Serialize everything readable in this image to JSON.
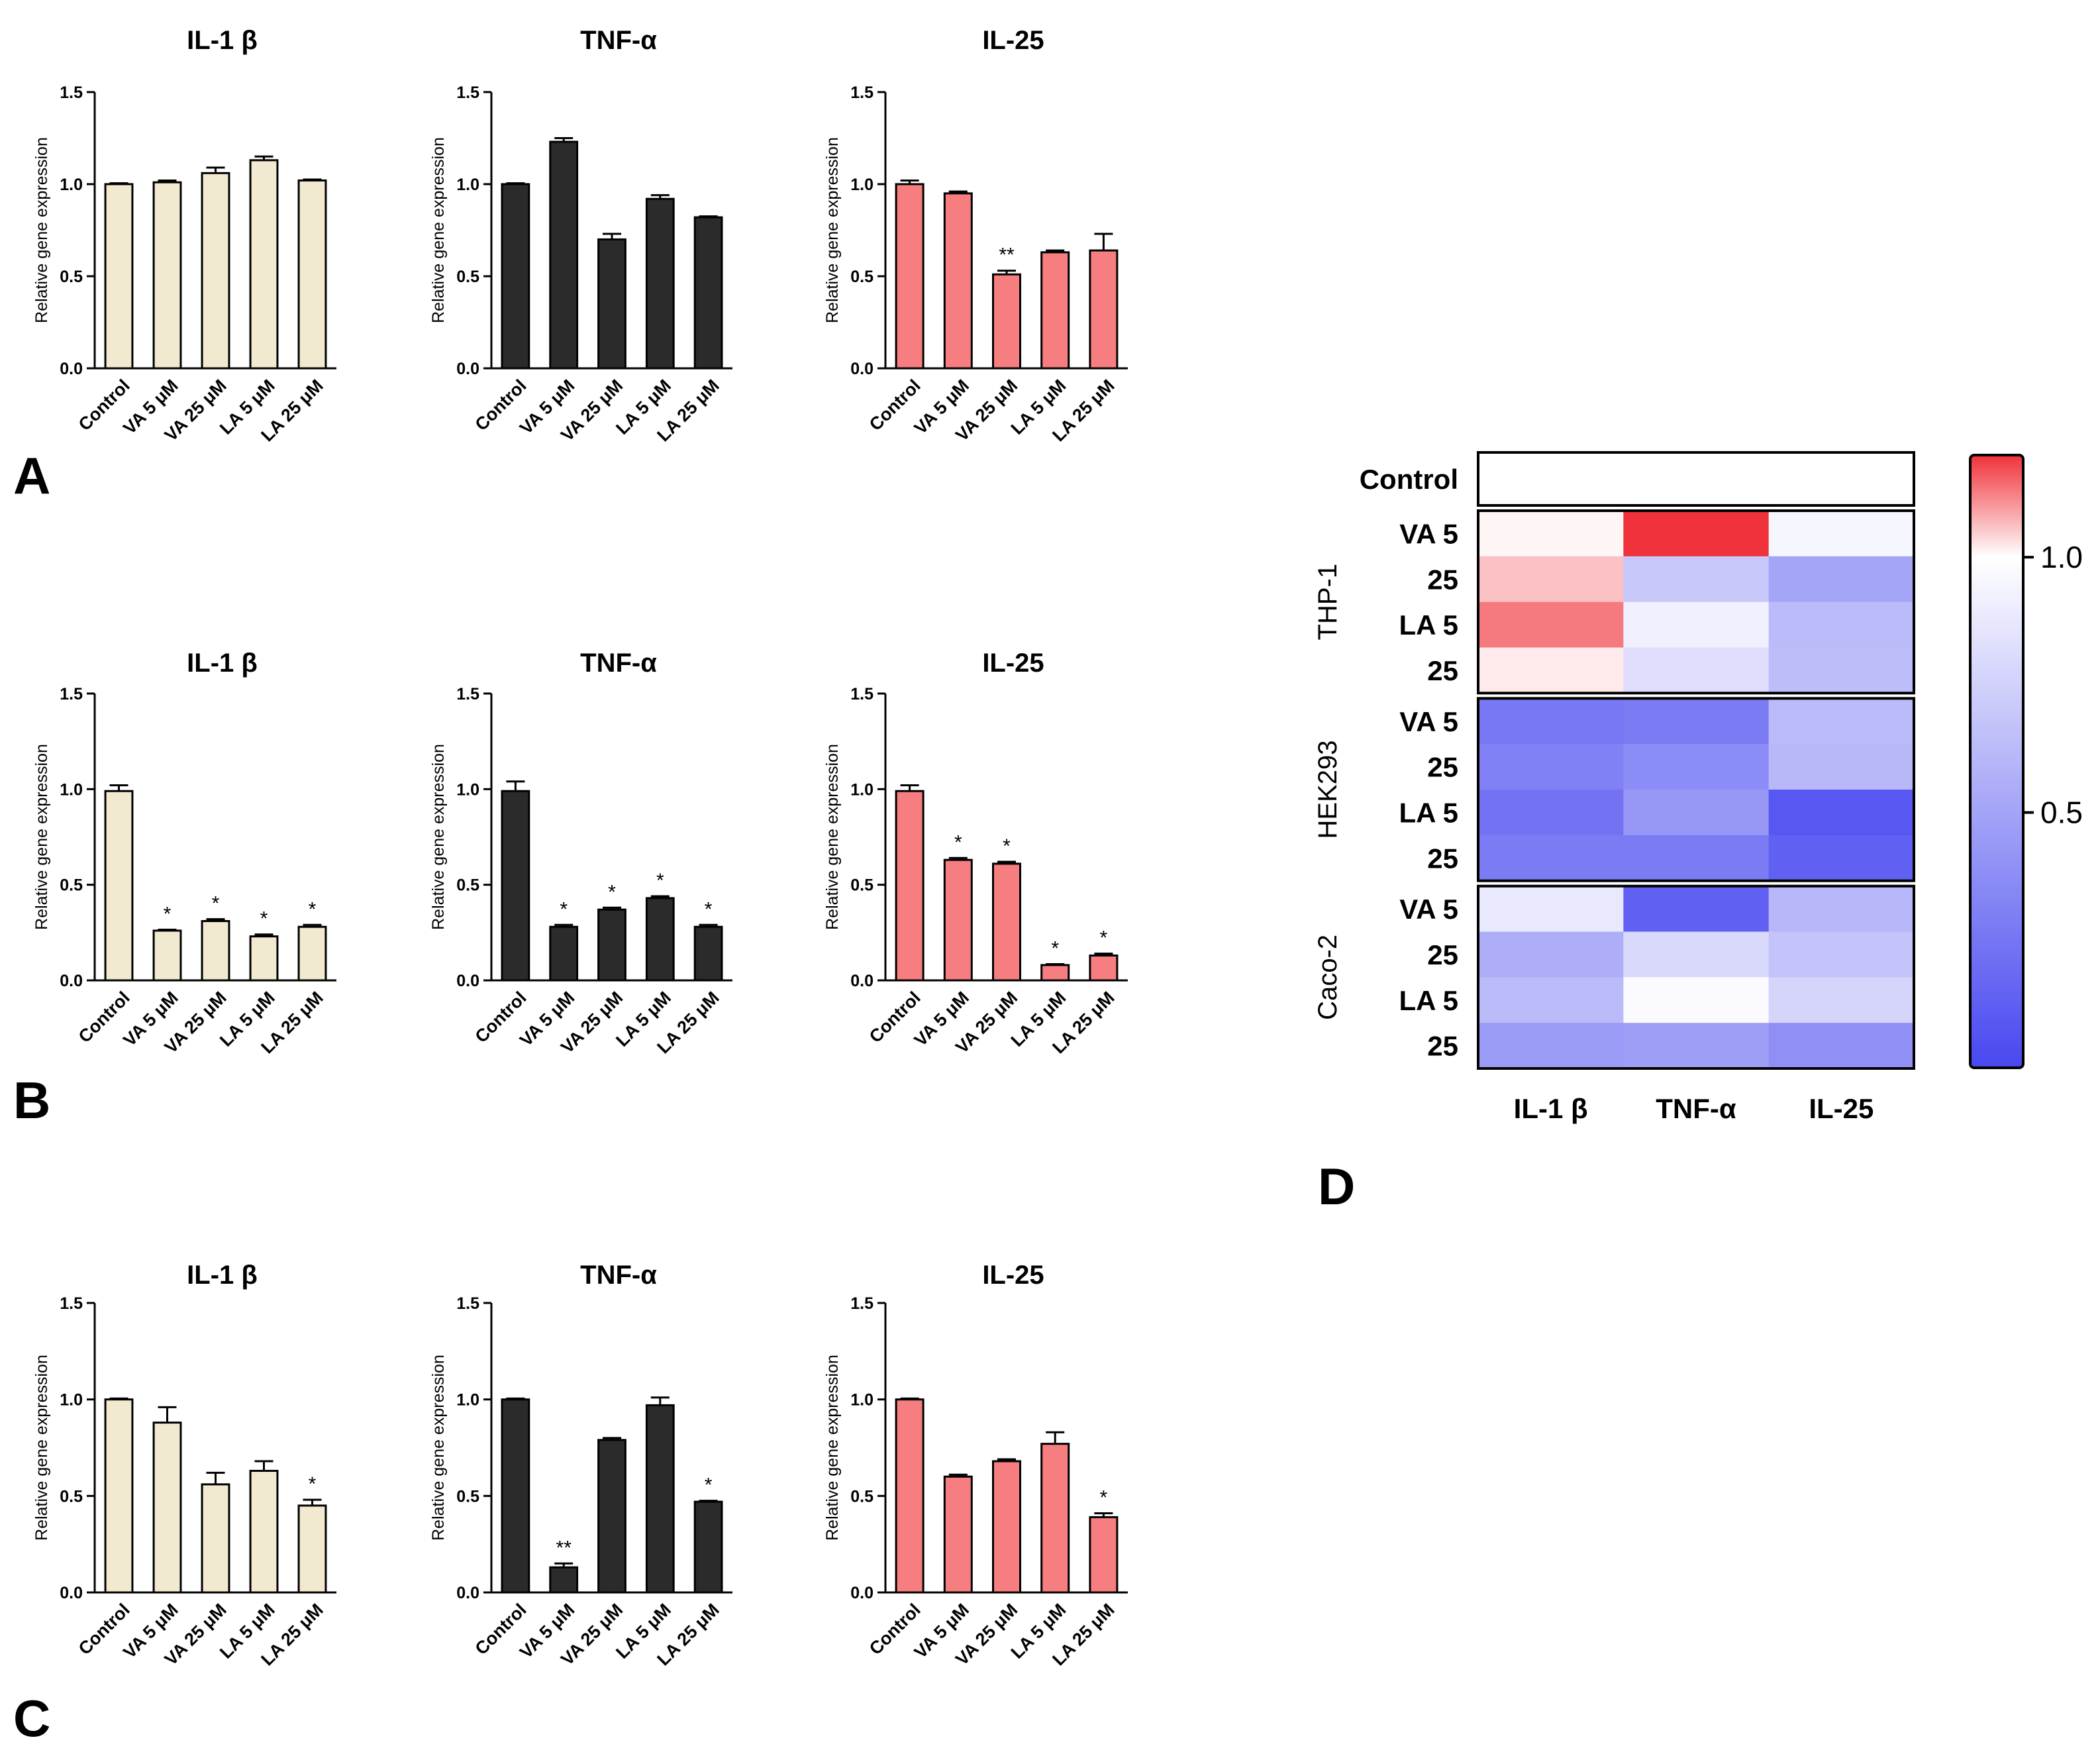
{
  "panel_labels": [
    "A",
    "B",
    "C",
    "D"
  ],
  "colors": {
    "il1b_fill": "#f2ead0",
    "tnf_fill": "#2b2b2b",
    "il25_fill": "#f77e80",
    "axis": "#000000",
    "heat_low": "#4848f0",
    "heat_mid": "#ffffff",
    "heat_high": "#f0323a"
  },
  "chart_data": [
    {
      "id": "A-IL1b",
      "panel": "A",
      "type": "bar",
      "title": "IL-1 β",
      "ylabel": "Relative gene expression",
      "ylim": [
        0,
        1.5
      ],
      "yticks": [
        "0.0",
        "0.5",
        "1.0",
        "1.5"
      ],
      "categories": [
        "Control",
        "VA 5 μM",
        "VA 25 μM",
        "LA 5 μM",
        "LA 25 μM"
      ],
      "values": [
        1.0,
        1.01,
        1.06,
        1.13,
        1.02
      ],
      "errors": [
        0.005,
        0.01,
        0.03,
        0.02,
        0.005
      ],
      "sig": [
        "",
        "",
        "",
        "",
        ""
      ],
      "color": "il1b_fill"
    },
    {
      "id": "A-TNFa",
      "panel": "A",
      "type": "bar",
      "title": "TNF-α",
      "ylabel": "Relative gene expression",
      "ylim": [
        0,
        1.5
      ],
      "yticks": [
        "0.0",
        "0.5",
        "1.0",
        "1.5"
      ],
      "categories": [
        "Control",
        "VA 5 μM",
        "VA 25 μM",
        "LA 5 μM",
        "LA 25 μM"
      ],
      "values": [
        1.0,
        1.23,
        0.7,
        0.92,
        0.82
      ],
      "errors": [
        0.005,
        0.02,
        0.03,
        0.02,
        0.005
      ],
      "sig": [
        "",
        "",
        "",
        "",
        ""
      ],
      "color": "tnf_fill"
    },
    {
      "id": "A-IL25",
      "panel": "A",
      "type": "bar",
      "title": "IL-25",
      "ylabel": "Relative gene expression",
      "ylim": [
        0,
        1.5
      ],
      "yticks": [
        "0.0",
        "0.5",
        "1.0",
        "1.5"
      ],
      "categories": [
        "Control",
        "VA 5 μM",
        "VA 25 μM",
        "LA 5 μM",
        "LA 25 μM"
      ],
      "values": [
        1.0,
        0.95,
        0.51,
        0.63,
        0.64
      ],
      "errors": [
        0.02,
        0.01,
        0.02,
        0.01,
        0.09
      ],
      "sig": [
        "",
        "",
        "**",
        "",
        ""
      ],
      "color": "il25_fill"
    },
    {
      "id": "B-IL1b",
      "panel": "B",
      "type": "bar",
      "title": "IL-1 β",
      "ylabel": "Relative gene expression",
      "ylim": [
        0,
        1.5
      ],
      "yticks": [
        "0.0",
        "0.5",
        "1.0",
        "1.5"
      ],
      "categories": [
        "Control",
        "VA 5 μM",
        "VA 25 μM",
        "LA 5 μM",
        "LA 25 μM"
      ],
      "values": [
        0.99,
        0.26,
        0.31,
        0.23,
        0.28
      ],
      "errors": [
        0.03,
        0.005,
        0.01,
        0.01,
        0.01
      ],
      "sig": [
        "",
        "*",
        "*",
        "*",
        "*"
      ],
      "color": "il1b_fill"
    },
    {
      "id": "B-TNFa",
      "panel": "B",
      "type": "bar",
      "title": "TNF-α",
      "ylabel": "Relative gene expression",
      "ylim": [
        0,
        1.5
      ],
      "yticks": [
        "0.0",
        "0.5",
        "1.0",
        "1.5"
      ],
      "categories": [
        "Control",
        "VA 5 μM",
        "VA 25 μM",
        "LA 5 μM",
        "LA 25 μM"
      ],
      "values": [
        0.99,
        0.28,
        0.37,
        0.43,
        0.28
      ],
      "errors": [
        0.05,
        0.01,
        0.01,
        0.01,
        0.01
      ],
      "sig": [
        "",
        "*",
        "*",
        "*",
        "*"
      ],
      "color": "tnf_fill"
    },
    {
      "id": "B-IL25",
      "panel": "B",
      "type": "bar",
      "title": "IL-25",
      "ylabel": "Relative gene expression",
      "ylim": [
        0,
        1.5
      ],
      "yticks": [
        "0.0",
        "0.5",
        "1.0",
        "1.5"
      ],
      "categories": [
        "Control",
        "VA 5 μM",
        "VA 25 μM",
        "LA 5 μM",
        "LA 25 μM"
      ],
      "values": [
        0.99,
        0.63,
        0.61,
        0.08,
        0.13
      ],
      "errors": [
        0.03,
        0.01,
        0.01,
        0.005,
        0.01
      ],
      "sig": [
        "",
        "*",
        "*",
        "*",
        "*"
      ],
      "color": "il25_fill"
    },
    {
      "id": "C-IL1b",
      "panel": "C",
      "type": "bar",
      "title": "IL-1 β",
      "ylabel": "Relative gene expression",
      "ylim": [
        0,
        1.5
      ],
      "yticks": [
        "0.0",
        "0.5",
        "1.0",
        "1.5"
      ],
      "categories": [
        "Control",
        "VA 5 μM",
        "VA 25 μM",
        "LA 5 μM",
        "LA 25 μM"
      ],
      "values": [
        1.0,
        0.88,
        0.56,
        0.63,
        0.45
      ],
      "errors": [
        0.005,
        0.08,
        0.06,
        0.05,
        0.03
      ],
      "sig": [
        "",
        "",
        "",
        "",
        "*"
      ],
      "color": "il1b_fill"
    },
    {
      "id": "C-TNFa",
      "panel": "C",
      "type": "bar",
      "title": "TNF-α",
      "ylabel": "Relative gene expression",
      "ylim": [
        0,
        1.5
      ],
      "yticks": [
        "0.0",
        "0.5",
        "1.0",
        "1.5"
      ],
      "categories": [
        "Control",
        "VA 5 μM",
        "VA 25 μM",
        "LA 5 μM",
        "LA 25 μM"
      ],
      "values": [
        1.0,
        0.13,
        0.79,
        0.97,
        0.47
      ],
      "errors": [
        0.005,
        0.02,
        0.01,
        0.04,
        0.005
      ],
      "sig": [
        "",
        "**",
        "",
        "",
        "*"
      ],
      "color": "tnf_fill"
    },
    {
      "id": "C-IL25",
      "panel": "C",
      "type": "bar",
      "title": "IL-25",
      "ylabel": "Relative gene expression",
      "ylim": [
        0,
        1.5
      ],
      "yticks": [
        "0.0",
        "0.5",
        "1.0",
        "1.5"
      ],
      "categories": [
        "Control",
        "VA 5 μM",
        "VA 25 μM",
        "LA 5 μM",
        "LA 25 μM"
      ],
      "values": [
        1.0,
        0.6,
        0.68,
        0.77,
        0.39
      ],
      "errors": [
        0.005,
        0.01,
        0.01,
        0.06,
        0.02
      ],
      "sig": [
        "",
        "",
        "",
        "",
        "*"
      ],
      "color": "il25_fill"
    },
    {
      "id": "D-heatmap",
      "panel": "D",
      "type": "heatmap",
      "columns": [
        "IL-1 β",
        "TNF-α",
        "IL-25"
      ],
      "control_label": "Control",
      "groups": [
        {
          "name": "THP-1",
          "rows": [
            {
              "label": "VA 5",
              "values": [
                1.01,
                1.23,
                0.95
              ]
            },
            {
              "label": "25",
              "values": [
                1.06,
                0.7,
                0.51
              ]
            },
            {
              "label": "LA 5",
              "values": [
                1.13,
                0.92,
                0.63
              ]
            },
            {
              "label": "25",
              "values": [
                1.02,
                0.82,
                0.64
              ]
            }
          ]
        },
        {
          "name": "HEK293",
          "rows": [
            {
              "label": "VA 5",
              "values": [
                0.26,
                0.28,
                0.63
              ]
            },
            {
              "label": "25",
              "values": [
                0.31,
                0.37,
                0.61
              ]
            },
            {
              "label": "LA 5",
              "values": [
                0.23,
                0.43,
                0.08
              ]
            },
            {
              "label": "25",
              "values": [
                0.28,
                0.28,
                0.13
              ]
            }
          ]
        },
        {
          "name": "Caco-2",
          "rows": [
            {
              "label": "VA 5",
              "values": [
                0.88,
                0.13,
                0.6
              ]
            },
            {
              "label": "25",
              "values": [
                0.56,
                0.79,
                0.68
              ]
            },
            {
              "label": "LA 5",
              "values": [
                0.63,
                0.97,
                0.77
              ]
            },
            {
              "label": "25",
              "values": [
                0.45,
                0.47,
                0.39
              ]
            }
          ]
        }
      ],
      "colorbar": {
        "min": 0.0,
        "max": 1.2,
        "ticks": [
          "1.0",
          "0.5"
        ],
        "tick_values": [
          1.0,
          0.5
        ]
      }
    }
  ]
}
